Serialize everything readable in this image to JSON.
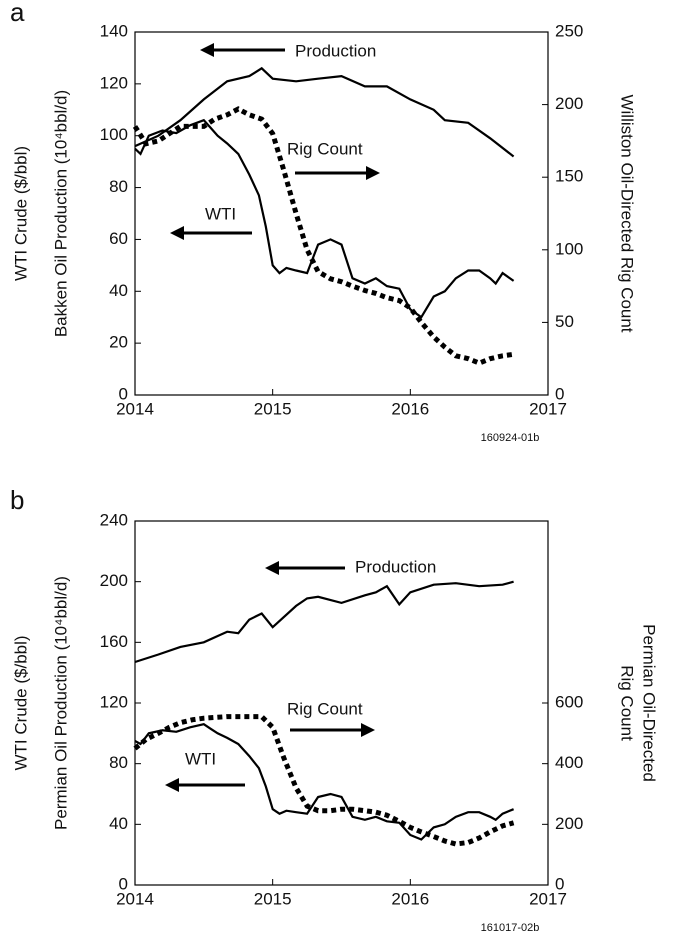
{
  "chart_data": [
    {
      "type": "line",
      "label": "a",
      "note": "160924-01b",
      "ylabel": [
        "WTI Crude ($/bbl)",
        "Bakken Oil Production (10⁴bbl/d)"
      ],
      "y2label": [
        "Williston Oil-Directed Rig Count"
      ],
      "xlim": [
        2014,
        2017
      ],
      "xticks": [
        2014,
        2015,
        2016,
        2017
      ],
      "ylim": [
        0,
        140
      ],
      "yticks": [
        0,
        20,
        40,
        60,
        80,
        100,
        120,
        140
      ],
      "y2lim": [
        0,
        250
      ],
      "y2ticks": [
        0,
        50,
        100,
        150,
        200,
        250
      ],
      "series": [
        {
          "name": "Production",
          "color": "#000000",
          "x": [
            2014.0,
            2014.17,
            2014.33,
            2014.5,
            2014.67,
            2014.83,
            2014.92,
            2015.0,
            2015.17,
            2015.33,
            2015.5,
            2015.67,
            2015.83,
            2016.0,
            2016.17,
            2016.25,
            2016.42,
            2016.58,
            2016.75
          ],
          "values": [
            96,
            100,
            106,
            114,
            121,
            123,
            126,
            122,
            121,
            122,
            123,
            119,
            119,
            114,
            110,
            106,
            105,
            99,
            92
          ]
        },
        {
          "name": "WTI",
          "color": "#000000",
          "x": [
            2014.0,
            2014.04,
            2014.1,
            2014.2,
            2014.3,
            2014.4,
            2014.5,
            2014.55,
            2014.6,
            2014.67,
            2014.75,
            2014.83,
            2014.9,
            2014.95,
            2015.0,
            2015.05,
            2015.1,
            2015.17,
            2015.25,
            2015.33,
            2015.42,
            2015.5,
            2015.58,
            2015.67,
            2015.75,
            2015.83,
            2015.92,
            2016.0,
            2016.08,
            2016.17,
            2016.25,
            2016.33,
            2016.42,
            2016.5,
            2016.58,
            2016.62,
            2016.67,
            2016.75
          ],
          "values": [
            95,
            93,
            100,
            102,
            101,
            104,
            106,
            103,
            100,
            97,
            93,
            85,
            77,
            65,
            50,
            47,
            49,
            48,
            47,
            58,
            60,
            58,
            45,
            43,
            45,
            42,
            41,
            33,
            30,
            38,
            40,
            45,
            48,
            48,
            45,
            43,
            47,
            44
          ]
        },
        {
          "name": "Rig Count",
          "color": "#000000",
          "axis": "y2",
          "dash": "dotted",
          "x": [
            2014.0,
            2014.08,
            2014.17,
            2014.25,
            2014.33,
            2014.42,
            2014.5,
            2014.58,
            2014.67,
            2014.75,
            2014.83,
            2014.92,
            2015.0,
            2015.08,
            2015.17,
            2015.25,
            2015.33,
            2015.42,
            2015.5,
            2015.58,
            2015.67,
            2015.75,
            2015.83,
            2015.92,
            2016.0,
            2016.08,
            2016.17,
            2016.25,
            2016.33,
            2016.42,
            2016.5,
            2016.58,
            2016.67,
            2016.75
          ],
          "values": [
            185,
            173,
            175,
            180,
            185,
            185,
            185,
            190,
            193,
            197,
            193,
            190,
            180,
            155,
            125,
            100,
            85,
            80,
            78,
            75,
            72,
            70,
            67,
            65,
            60,
            50,
            40,
            33,
            27,
            25,
            22,
            25,
            27,
            28
          ]
        }
      ]
    },
    {
      "type": "line",
      "label": "b",
      "note": "161017-02b",
      "ylabel": [
        "WTI Crude ($/bbl)",
        "Permian Oil Production (10⁴bbl/d)"
      ],
      "y2label": [
        "Permian Oil-Directed",
        "Rig Count"
      ],
      "xlim": [
        2014,
        2017
      ],
      "xticks": [
        2014,
        2015,
        2016,
        2017
      ],
      "ylim": [
        0,
        240
      ],
      "yticks": [
        0,
        40,
        80,
        120,
        160,
        200,
        240
      ],
      "y2lim": [
        0,
        1200
      ],
      "y2ticks": [
        0,
        200,
        400,
        600
      ],
      "series": [
        {
          "name": "Production",
          "color": "#000000",
          "x": [
            2014.0,
            2014.17,
            2014.33,
            2014.5,
            2014.67,
            2014.75,
            2014.83,
            2014.92,
            2015.0,
            2015.17,
            2015.25,
            2015.33,
            2015.5,
            2015.67,
            2015.75,
            2015.83,
            2015.92,
            2016.0,
            2016.17,
            2016.33,
            2016.5,
            2016.67,
            2016.75
          ],
          "values": [
            147,
            152,
            157,
            160,
            167,
            166,
            175,
            179,
            170,
            184,
            189,
            190,
            186,
            191,
            193,
            197,
            185,
            193,
            198,
            199,
            197,
            198,
            200
          ]
        },
        {
          "name": "WTI",
          "color": "#000000",
          "x": [
            2014.0,
            2014.04,
            2014.1,
            2014.2,
            2014.3,
            2014.4,
            2014.5,
            2014.55,
            2014.6,
            2014.67,
            2014.75,
            2014.83,
            2014.9,
            2014.95,
            2015.0,
            2015.05,
            2015.1,
            2015.17,
            2015.25,
            2015.33,
            2015.42,
            2015.5,
            2015.58,
            2015.67,
            2015.75,
            2015.83,
            2015.92,
            2016.0,
            2016.08,
            2016.17,
            2016.25,
            2016.33,
            2016.42,
            2016.5,
            2016.58,
            2016.62,
            2016.67,
            2016.75
          ],
          "values": [
            95,
            93,
            100,
            102,
            101,
            104,
            106,
            103,
            100,
            97,
            93,
            85,
            77,
            65,
            50,
            47,
            49,
            48,
            47,
            58,
            60,
            58,
            45,
            43,
            45,
            42,
            41,
            33,
            30,
            38,
            40,
            45,
            48,
            48,
            45,
            43,
            47,
            50
          ]
        },
        {
          "name": "Rig Count",
          "color": "#000000",
          "axis": "y2",
          "dash": "dotted",
          "x": [
            2014.0,
            2014.08,
            2014.17,
            2014.25,
            2014.33,
            2014.42,
            2014.5,
            2014.67,
            2014.83,
            2014.92,
            2015.0,
            2015.08,
            2015.17,
            2015.25,
            2015.33,
            2015.42,
            2015.5,
            2015.58,
            2015.67,
            2015.75,
            2015.83,
            2015.92,
            2016.0,
            2016.08,
            2016.17,
            2016.25,
            2016.33,
            2016.42,
            2016.5,
            2016.58,
            2016.67,
            2016.75
          ],
          "values": [
            450,
            480,
            500,
            520,
            535,
            545,
            550,
            555,
            555,
            555,
            520,
            420,
            320,
            260,
            245,
            245,
            250,
            250,
            245,
            240,
            230,
            210,
            190,
            175,
            160,
            145,
            135,
            140,
            155,
            175,
            195,
            205
          ]
        }
      ]
    }
  ]
}
